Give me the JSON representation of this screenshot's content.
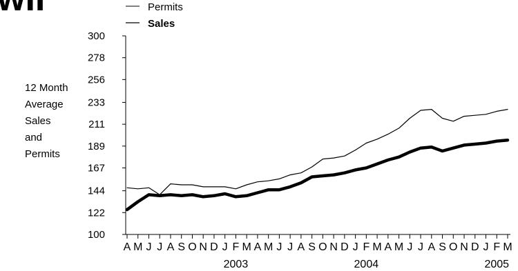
{
  "header": {
    "title_fragment": "wII"
  },
  "chart_data": {
    "type": "line",
    "ylabel_lines": [
      "12 Month",
      "Average",
      "Sales",
      "and",
      "Permits"
    ],
    "yticks": [
      100,
      122,
      144,
      167,
      189,
      211,
      233,
      256,
      278,
      300
    ],
    "ylim": [
      100,
      300
    ],
    "categories": [
      "A",
      "M",
      "J",
      "J",
      "A",
      "S",
      "O",
      "N",
      "D",
      "J",
      "F",
      "M",
      "A",
      "M",
      "J",
      "J",
      "A",
      "S",
      "O",
      "N",
      "D",
      "J",
      "F",
      "M",
      "A",
      "M",
      "J",
      "J",
      "A",
      "S",
      "O",
      "N",
      "D",
      "J",
      "F",
      "M"
    ],
    "year_labels": [
      {
        "text": "2003",
        "index": 10
      },
      {
        "text": "2004",
        "index": 22
      },
      {
        "text": "2005",
        "index": 34
      }
    ],
    "series": [
      {
        "name": "Permits",
        "style": "thin",
        "values": [
          147,
          146,
          147,
          140,
          151,
          150,
          150,
          148,
          148,
          148,
          146,
          150,
          153,
          154,
          156,
          160,
          162,
          168,
          176,
          177,
          179,
          185,
          192,
          196,
          201,
          207,
          217,
          225,
          226,
          217,
          214,
          219,
          220,
          221,
          224,
          226
        ]
      },
      {
        "name": "Sales",
        "style": "bold",
        "values": [
          125,
          133,
          140,
          139,
          140,
          139,
          140,
          138,
          139,
          141,
          138,
          139,
          142,
          145,
          145,
          148,
          152,
          158,
          159,
          160,
          162,
          165,
          167,
          171,
          175,
          178,
          183,
          187,
          188,
          184,
          187,
          190,
          191,
          192,
          194,
          195
        ]
      }
    ],
    "legend_position": "top-left",
    "grid": false,
    "line_color": "#000000"
  }
}
